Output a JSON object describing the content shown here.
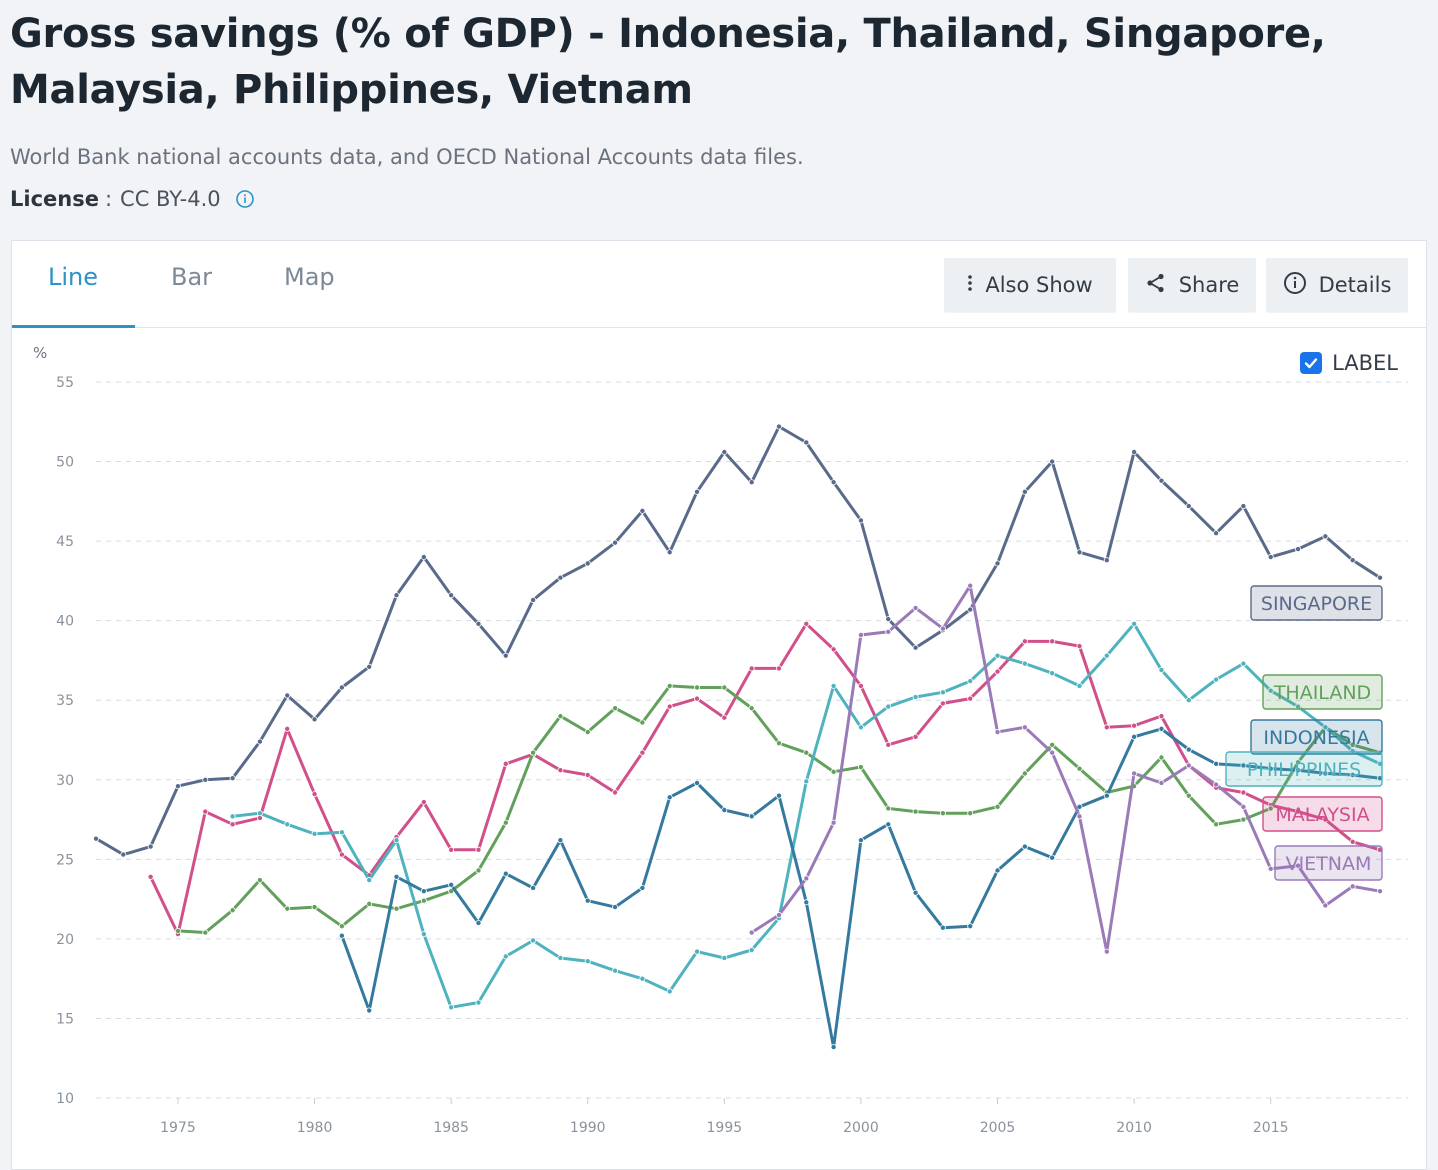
{
  "header": {
    "title": "Gross savings (% of GDP) - Indonesia, Thailand, Singapore, Malaysia, Philippines, Vietnam",
    "source": "World Bank national accounts data, and OECD National Accounts data files.",
    "license_label": "License",
    "license_sep": ":",
    "license_value": "CC BY-4.0"
  },
  "tabs": [
    {
      "label": "Line",
      "active": true
    },
    {
      "label": "Bar",
      "active": false
    },
    {
      "label": "Map",
      "active": false
    }
  ],
  "toolbar": {
    "also_show": "Also Show",
    "share": "Share",
    "details": "Details"
  },
  "label_toggle": {
    "label": "LABEL",
    "checked": true
  },
  "colors": {
    "accent": "#2d92c6",
    "checkbox": "#1a73e8",
    "singapore": "#5a6a8a",
    "malaysia": "#d14f8a",
    "thailand": "#62a05c",
    "philippines": "#4fb3bf",
    "indonesia": "#357a9e",
    "vietnam": "#9b7ab8"
  },
  "chart_data": {
    "type": "line",
    "ylabel": "%",
    "ylim": [
      10,
      55
    ],
    "xlim": [
      1972,
      2019
    ],
    "yticks": [
      10,
      15,
      20,
      25,
      30,
      35,
      40,
      45,
      50,
      55
    ],
    "xticks": [
      1975,
      1980,
      1985,
      1990,
      1995,
      2000,
      2005,
      2010,
      2015
    ],
    "grid": true,
    "series": [
      {
        "name": "SINGAPORE",
        "color_key": "singapore",
        "x": [
          1972,
          1973,
          1974,
          1975,
          1976,
          1977,
          1978,
          1979,
          1980,
          1981,
          1982,
          1983,
          1984,
          1985,
          1986,
          1987,
          1988,
          1989,
          1990,
          1991,
          1992,
          1993,
          1994,
          1995,
          1996,
          1997,
          1998,
          1999,
          2000,
          2001,
          2002,
          2003,
          2004,
          2005,
          2006,
          2007,
          2008,
          2009,
          2010,
          2011,
          2012,
          2013,
          2014,
          2015,
          2016,
          2017,
          2018,
          2019
        ],
        "values": [
          26.3,
          25.3,
          25.8,
          29.6,
          30.0,
          30.1,
          32.4,
          35.3,
          33.8,
          35.8,
          37.1,
          41.6,
          44.0,
          41.6,
          39.8,
          37.8,
          41.3,
          42.7,
          43.6,
          44.9,
          46.9,
          44.3,
          48.1,
          50.6,
          48.7,
          52.2,
          51.2,
          48.7,
          46.3,
          40.1,
          38.3,
          39.4,
          40.7,
          43.6,
          48.1,
          50.0,
          44.3,
          43.8,
          50.6,
          48.8,
          47.2,
          45.5,
          47.2,
          44.0,
          44.5,
          45.3,
          43.8,
          42.7
        ]
      },
      {
        "name": "MALAYSIA",
        "color_key": "malaysia",
        "x": [
          1974,
          1975,
          1976,
          1977,
          1978,
          1979,
          1980,
          1981,
          1982,
          1983,
          1984,
          1985,
          1986,
          1987,
          1988,
          1989,
          1990,
          1991,
          1992,
          1993,
          1994,
          1995,
          1996,
          1997,
          1998,
          1999,
          2000,
          2001,
          2002,
          2003,
          2004,
          2005,
          2006,
          2007,
          2008,
          2009,
          2010,
          2011,
          2012,
          2013,
          2014,
          2015,
          2016,
          2017,
          2018,
          2019
        ],
        "values": [
          23.9,
          20.3,
          28.0,
          27.2,
          27.6,
          33.2,
          29.1,
          25.3,
          24.0,
          26.4,
          28.6,
          25.6,
          25.6,
          31.0,
          31.6,
          30.6,
          30.3,
          29.2,
          31.7,
          34.6,
          35.1,
          33.9,
          37.0,
          37.0,
          39.8,
          38.2,
          35.9,
          32.2,
          32.7,
          34.8,
          35.1,
          36.8,
          38.7,
          38.7,
          38.4,
          33.3,
          33.4,
          34.0,
          30.9,
          29.5,
          29.2,
          28.4,
          28.0,
          27.5,
          26.1,
          25.6
        ]
      },
      {
        "name": "THAILAND",
        "color_key": "thailand",
        "x": [
          1975,
          1976,
          1977,
          1978,
          1979,
          1980,
          1981,
          1982,
          1983,
          1984,
          1985,
          1986,
          1987,
          1988,
          1989,
          1990,
          1991,
          1992,
          1993,
          1994,
          1995,
          1996,
          1997,
          1998,
          1999,
          2000,
          2001,
          2002,
          2003,
          2004,
          2005,
          2006,
          2007,
          2008,
          2009,
          2010,
          2011,
          2012,
          2013,
          2014,
          2015,
          2016,
          2017,
          2018,
          2019
        ],
        "values": [
          20.5,
          20.4,
          21.8,
          23.7,
          21.9,
          22.0,
          20.8,
          22.2,
          21.9,
          22.4,
          23.0,
          24.3,
          27.3,
          31.7,
          34.0,
          33.0,
          34.5,
          33.6,
          35.9,
          35.8,
          35.8,
          34.5,
          32.3,
          31.7,
          30.5,
          30.8,
          28.2,
          28.0,
          27.9,
          27.9,
          28.3,
          30.4,
          32.2,
          30.7,
          29.2,
          29.6,
          31.4,
          29.0,
          27.2,
          27.5,
          28.2,
          31.1,
          33.3,
          32.2,
          31.7
        ]
      },
      {
        "name": "PHILIPPINES",
        "color_key": "philippines",
        "x": [
          1977,
          1978,
          1979,
          1980,
          1981,
          1982,
          1983,
          1984,
          1985,
          1986,
          1987,
          1988,
          1989,
          1990,
          1991,
          1992,
          1993,
          1994,
          1995,
          1996,
          1997,
          1998,
          1999,
          2000,
          2001,
          2002,
          2003,
          2004,
          2005,
          2006,
          2007,
          2008,
          2009,
          2010,
          2011,
          2012,
          2013,
          2014,
          2015,
          2016,
          2017,
          2018,
          2019
        ],
        "values": [
          27.7,
          27.9,
          27.2,
          26.6,
          26.7,
          23.7,
          26.2,
          20.3,
          15.7,
          16.0,
          18.9,
          19.9,
          18.8,
          18.6,
          18.0,
          17.5,
          16.7,
          19.2,
          18.8,
          19.3,
          21.3,
          29.9,
          35.9,
          33.3,
          34.6,
          35.2,
          35.5,
          36.2,
          37.8,
          37.3,
          36.7,
          35.9,
          37.8,
          39.8,
          36.9,
          35.0,
          36.3,
          37.3,
          35.6,
          34.6,
          33.3,
          31.8,
          31.0
        ]
      },
      {
        "name": "INDONESIA",
        "color_key": "indonesia",
        "x": [
          1981,
          1982,
          1983,
          1984,
          1985,
          1986,
          1987,
          1988,
          1989,
          1990,
          1991,
          1992,
          1993,
          1994,
          1995,
          1996,
          1997,
          1998,
          1999,
          2000,
          2001,
          2002,
          2003,
          2004,
          2005,
          2006,
          2007,
          2008,
          2009,
          2010,
          2011,
          2012,
          2013,
          2014,
          2015,
          2016,
          2017,
          2018,
          2019
        ],
        "values": [
          20.2,
          15.5,
          23.9,
          23.0,
          23.4,
          21.0,
          24.1,
          23.2,
          26.2,
          22.4,
          22.0,
          23.2,
          28.9,
          29.8,
          28.1,
          27.7,
          29.0,
          22.3,
          13.2,
          26.2,
          27.2,
          22.9,
          20.7,
          20.8,
          24.3,
          25.8,
          25.1,
          28.3,
          29.0,
          32.7,
          33.2,
          31.9,
          31.0,
          30.9,
          30.7,
          30.6,
          30.4,
          30.3,
          30.1
        ]
      },
      {
        "name": "VIETNAM",
        "color_key": "vietnam",
        "x": [
          1996,
          1997,
          1998,
          1999,
          2000,
          2001,
          2002,
          2003,
          2004,
          2005,
          2006,
          2007,
          2008,
          2009,
          2010,
          2011,
          2012,
          2013,
          2014,
          2015,
          2016,
          2017,
          2018,
          2019
        ],
        "values": [
          20.4,
          21.5,
          23.8,
          27.3,
          39.1,
          39.3,
          40.8,
          39.5,
          42.2,
          33.0,
          33.3,
          31.7,
          27.7,
          19.2,
          30.4,
          29.8,
          30.9,
          29.7,
          28.3,
          24.4,
          24.6,
          22.1,
          23.3,
          23.0
        ]
      }
    ],
    "labels": [
      {
        "name": "SINGAPORE",
        "color_key": "singapore"
      },
      {
        "name": "THAILAND",
        "color_key": "thailand"
      },
      {
        "name": "INDONESIA",
        "color_key": "indonesia"
      },
      {
        "name": "PHILIPPINES",
        "color_key": "philippines"
      },
      {
        "name": "MALAYSIA",
        "color_key": "malaysia"
      },
      {
        "name": "VIETNAM",
        "color_key": "vietnam"
      }
    ]
  }
}
